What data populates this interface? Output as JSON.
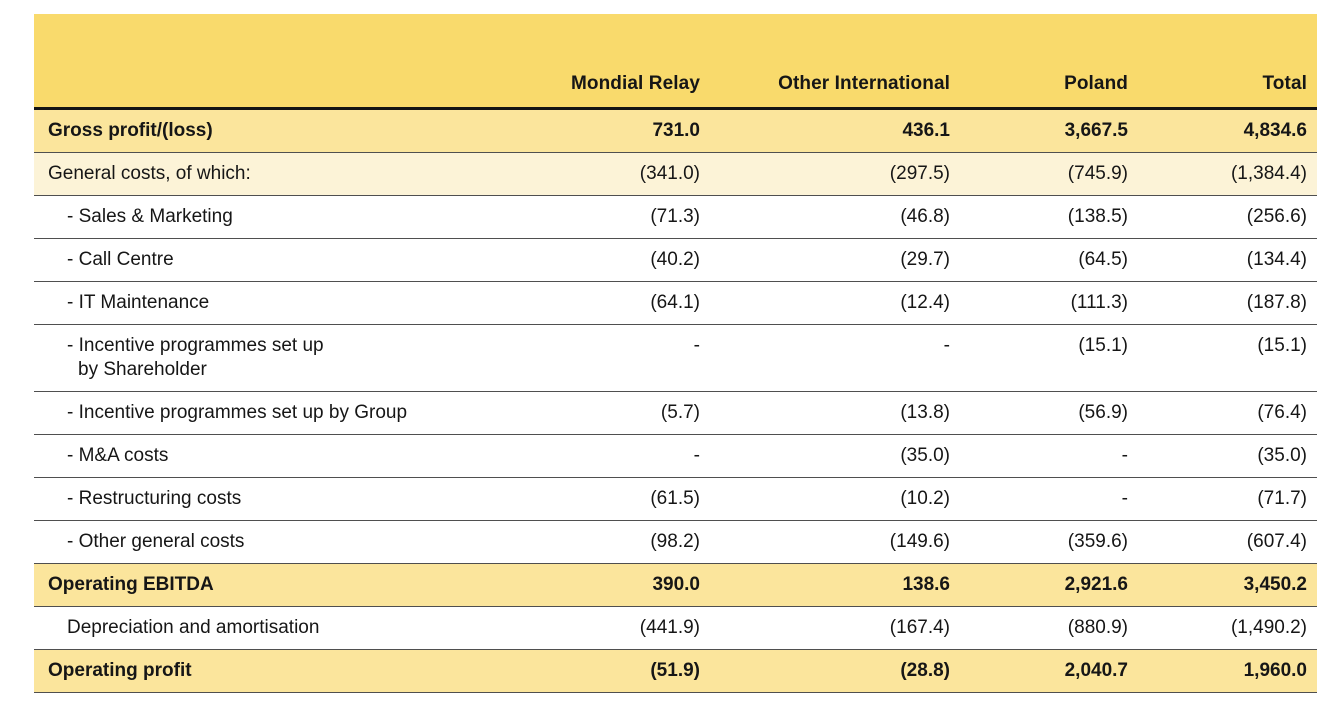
{
  "page": {
    "background": "#FFFFFF"
  },
  "colors": {
    "header_bg": "#F9DA6C",
    "highlight_row_bg": "#FBE59C",
    "light_row_bg": "#FCF3D7",
    "plain_row_bg": "#FFFFFF",
    "header_rule": "#141414",
    "row_rule": "#4F4F4F",
    "text": "#161616"
  },
  "table": {
    "columns": [
      {
        "label": ""
      },
      {
        "label": "Mondial Relay"
      },
      {
        "label": "Other International"
      },
      {
        "label": "Poland"
      },
      {
        "label": "Total"
      }
    ],
    "rows": [
      {
        "label": "Gross profit/(loss)",
        "style": "total",
        "values": [
          "731.0",
          "436.1",
          "3,667.5",
          "4,834.6"
        ]
      },
      {
        "label": "General costs, of which:",
        "style": "light",
        "values": [
          "(341.0)",
          "(297.5)",
          "(745.9)",
          "(1,384.4)"
        ]
      },
      {
        "label": "- Sales & Marketing",
        "style": "item",
        "values": [
          "(71.3)",
          "(46.8)",
          "(138.5)",
          "(256.6)"
        ]
      },
      {
        "label": "- Call Centre",
        "style": "item",
        "values": [
          "(40.2)",
          "(29.7)",
          "(64.5)",
          "(134.4)"
        ]
      },
      {
        "label": "- IT Maintenance",
        "style": "item",
        "values": [
          "(64.1)",
          "(12.4)",
          "(111.3)",
          "(187.8)"
        ]
      },
      {
        "label": "- Incentive programmes set up",
        "label_line2": "by Shareholder",
        "style": "item",
        "values": [
          "-",
          "-",
          "(15.1)",
          "(15.1)"
        ]
      },
      {
        "label": "- Incentive programmes set up by Group",
        "style": "item",
        "values": [
          "(5.7)",
          "(13.8)",
          "(56.9)",
          "(76.4)"
        ]
      },
      {
        "label": "- M&A costs",
        "style": "item",
        "values": [
          "-",
          "(35.0)",
          "-",
          "(35.0)"
        ]
      },
      {
        "label": "- Restructuring costs",
        "style": "item",
        "values": [
          "(61.5)",
          "(10.2)",
          "-",
          "(71.7)"
        ]
      },
      {
        "label": "- Other general costs",
        "style": "item",
        "values": [
          "(98.2)",
          "(149.6)",
          "(359.6)",
          "(607.4)"
        ]
      },
      {
        "label": "Operating EBITDA",
        "style": "total",
        "values": [
          "390.0",
          "138.6",
          "2,921.6",
          "3,450.2"
        ]
      },
      {
        "label": "Depreciation and amortisation",
        "style": "indent",
        "values": [
          "(441.9)",
          "(167.4)",
          "(880.9)",
          "(1,490.2)"
        ]
      },
      {
        "label": "Operating profit",
        "style": "total",
        "values": [
          "(51.9)",
          "(28.8)",
          "2,040.7",
          "1,960.0"
        ]
      }
    ]
  }
}
